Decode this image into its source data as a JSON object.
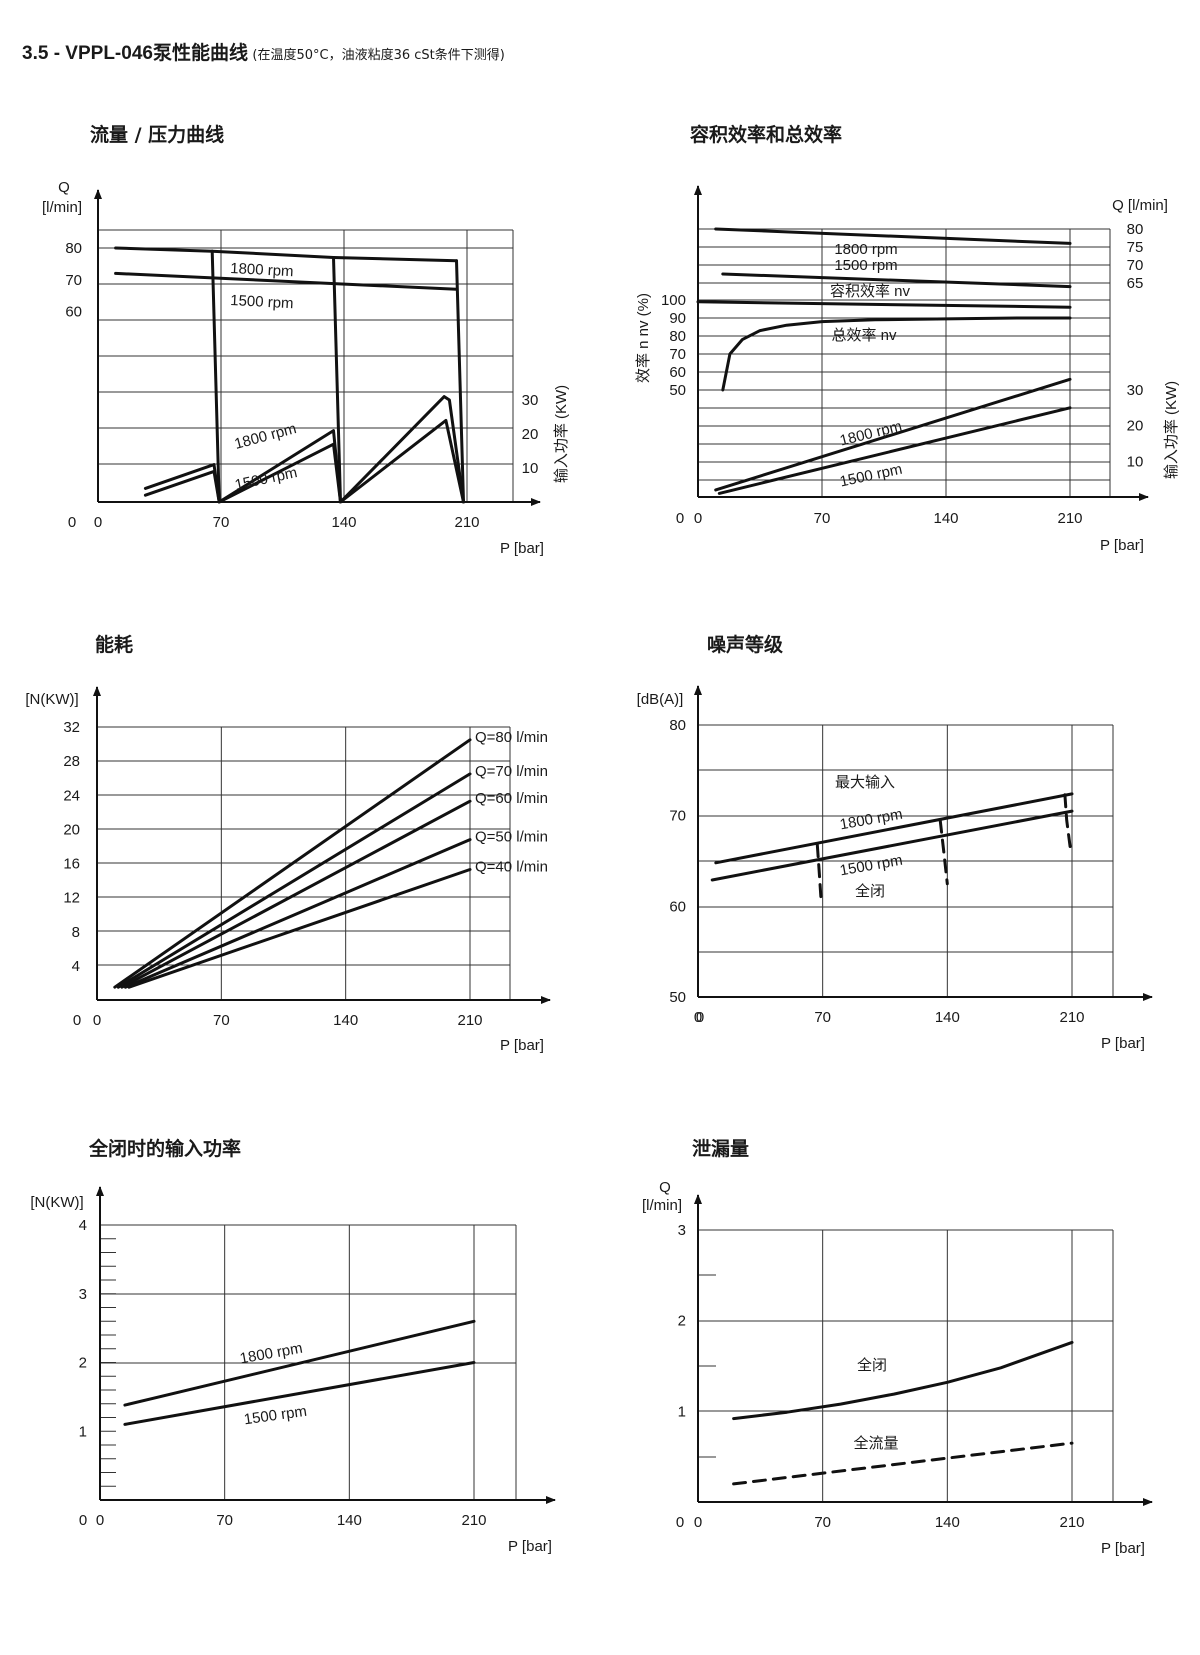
{
  "page": {
    "title_main": "3.5 - VPPL-046泵性能曲线",
    "title_sub": "(在温度50°C，油液粘度36 cSt条件下测得)"
  },
  "chart_data": [
    {
      "id": "flow_pressure",
      "type": "line",
      "title": "流量 / 压力曲线",
      "xlabel": "P [bar]",
      "ylabel_left": "Q [l/min]",
      "ylabel_right": "输入功率 (KW)",
      "x_ticks": [
        0,
        70,
        140,
        210
      ],
      "y_left_ticks": [
        60,
        70,
        80
      ],
      "y_right_ticks": [
        10,
        20,
        30
      ],
      "xlim": [
        0,
        245
      ],
      "ylim_left": [
        0,
        90
      ],
      "ylim_right": [
        0,
        60
      ],
      "grid": true,
      "series": [
        {
          "name": "1800 rpm",
          "axis": "left",
          "role": "flow",
          "x": [
            10,
            65
          ],
          "y": [
            80,
            79
          ]
        },
        {
          "name": "",
          "axis": "left",
          "role": "flow",
          "x": [
            65,
            134
          ],
          "y": [
            79,
            77
          ]
        },
        {
          "name": "",
          "axis": "left",
          "role": "flow",
          "x": [
            134,
            204
          ],
          "y": [
            77,
            76
          ]
        },
        {
          "name": "1500 rpm",
          "axis": "left",
          "role": "flow",
          "x": [
            10,
            204
          ],
          "y": [
            72,
            67
          ]
        },
        {
          "name": "",
          "axis": "left",
          "role": "drop",
          "x": [
            65,
            69
          ],
          "y": [
            79,
            0
          ]
        },
        {
          "name": "",
          "axis": "left",
          "role": "drop",
          "x": [
            134,
            138
          ],
          "y": [
            77,
            0
          ]
        },
        {
          "name": "",
          "axis": "left",
          "role": "drop",
          "x": [
            204,
            208
          ],
          "y": [
            76,
            0
          ]
        },
        {
          "name": "1800 rpm",
          "axis": "right",
          "role": "power",
          "x": [
            27,
            66,
            69,
            134,
            138,
            197,
            200,
            208
          ],
          "y": [
            4,
            11,
            0,
            21,
            0,
            31,
            30,
            0
          ]
        },
        {
          "name": "1500 rpm",
          "axis": "right",
          "role": "power",
          "x": [
            27,
            66,
            69,
            134,
            138,
            198,
            208
          ],
          "y": [
            2,
            9,
            0,
            17,
            0,
            24,
            0
          ]
        }
      ],
      "annotations": [
        "1800 rpm",
        "1500 rpm",
        "1800 rpm",
        "1500 rpm"
      ]
    },
    {
      "id": "efficiency",
      "type": "line",
      "title": "容积效率和总效率",
      "xlabel": "P [bar]",
      "ylabel_left": "效率 n nv (%)",
      "ylabel_right_top": "Q [l/min]",
      "ylabel_right_bottom": "输入功率 (KW)",
      "x_ticks": [
        0,
        70,
        140,
        210
      ],
      "y_left_ticks": [
        50,
        60,
        70,
        80,
        90,
        100
      ],
      "y_right_top_ticks": [
        65,
        70,
        75,
        80
      ],
      "y_right_bottom_ticks": [
        10,
        20,
        30
      ],
      "xlim": [
        0,
        245
      ],
      "grid": true,
      "series": [
        {
          "name": "1800 rpm",
          "role": "flow",
          "x": [
            10,
            210
          ],
          "y": [
            80,
            76
          ]
        },
        {
          "name": "1500 rpm",
          "role": "flow",
          "x": [
            14,
            210
          ],
          "y": [
            67.5,
            64
          ]
        },
        {
          "name": "容积效率 nv",
          "role": "efficiency",
          "x": [
            0,
            210
          ],
          "y": [
            99,
            96
          ]
        },
        {
          "name": "总效率 nv",
          "role": "efficiency",
          "x": [
            14,
            18,
            25,
            35,
            50,
            70,
            100,
            140,
            180,
            210
          ],
          "y": [
            50,
            70,
            78,
            83,
            86,
            88,
            89,
            89.5,
            90,
            90
          ]
        },
        {
          "name": "1800 rpm",
          "role": "power",
          "x": [
            10,
            210
          ],
          "y": [
            2,
            33
          ]
        },
        {
          "name": "1500 rpm",
          "role": "power",
          "x": [
            12,
            210
          ],
          "y": [
            1,
            25
          ]
        }
      ],
      "annotations": [
        "1800 rpm",
        "1500 rpm",
        "容积效率 nv",
        "总效率 nv",
        "1800 rpm",
        "1500 rpm"
      ]
    },
    {
      "id": "power_consumption",
      "type": "line",
      "title": "能耗",
      "xlabel": "P [bar]",
      "ylabel": "[N(KW)]",
      "x_ticks": [
        0,
        70,
        140,
        210
      ],
      "y_ticks": [
        4,
        8,
        12,
        16,
        20,
        24,
        28,
        32
      ],
      "xlim": [
        0,
        245
      ],
      "ylim": [
        0,
        34
      ],
      "grid": true,
      "series": [
        {
          "name": "Q=80 l/min",
          "x": [
            10,
            210
          ],
          "y": [
            1.5,
            30.5
          ]
        },
        {
          "name": "Q=70 l/min",
          "x": [
            12,
            210
          ],
          "y": [
            1.5,
            26.5
          ]
        },
        {
          "name": "Q=60 l/min",
          "x": [
            14,
            210
          ],
          "y": [
            1.5,
            23.3
          ]
        },
        {
          "name": "Q=50 l/min",
          "x": [
            16,
            210
          ],
          "y": [
            1.5,
            18.8
          ]
        },
        {
          "name": "Q=40 l/min",
          "x": [
            18,
            210
          ],
          "y": [
            1.5,
            15.3
          ]
        }
      ]
    },
    {
      "id": "noise",
      "type": "line",
      "title": "噪声等级",
      "xlabel": "P [bar]",
      "ylabel": "[dB(A)]",
      "x_ticks": [
        0,
        70,
        140,
        210
      ],
      "y_ticks": [
        50,
        60,
        70,
        80
      ],
      "xlim": [
        0,
        245
      ],
      "ylim": [
        50,
        80
      ],
      "grid": true,
      "series": [
        {
          "name": "1800 rpm",
          "x": [
            10,
            210
          ],
          "y": [
            64.8,
            72.4
          ]
        },
        {
          "name": "1500 rpm",
          "x": [
            8,
            210
          ],
          "y": [
            62.9,
            70.5
          ]
        },
        {
          "name": "全闭",
          "style": "dashed",
          "x": [
            67,
            68,
            69
          ],
          "y": [
            66.8,
            64,
            61
          ]
        },
        {
          "name": "全闭",
          "style": "dashed",
          "x": [
            136,
            138,
            140
          ],
          "y": [
            69.5,
            66,
            62.5
          ]
        },
        {
          "name": "全闭",
          "style": "dashed",
          "x": [
            206,
            207,
            209
          ],
          "y": [
            72.3,
            69.5,
            66.5
          ]
        }
      ],
      "annotations": [
        "最大输入",
        "1800 rpm",
        "1500 rpm",
        "全闭"
      ]
    },
    {
      "id": "deadhead_power",
      "type": "line",
      "title": "全闭时的输入功率",
      "xlabel": "P [bar]",
      "ylabel": "[N(KW)]",
      "x_ticks": [
        0,
        70,
        140,
        210
      ],
      "y_ticks": [
        1,
        2,
        3,
        4
      ],
      "xlim": [
        0,
        245
      ],
      "ylim": [
        0,
        4.2
      ],
      "grid": true,
      "series": [
        {
          "name": "1800 rpm",
          "x": [
            14,
            210
          ],
          "y": [
            1.38,
            2.6
          ]
        },
        {
          "name": "1500 rpm",
          "x": [
            14,
            210
          ],
          "y": [
            1.1,
            2.0
          ]
        }
      ]
    },
    {
      "id": "leakage",
      "type": "line",
      "title": "泄漏量",
      "xlabel": "P [bar]",
      "ylabel": "Q [l/min]",
      "x_ticks": [
        0,
        70,
        140,
        210
      ],
      "y_ticks": [
        1,
        2,
        3
      ],
      "xlim": [
        0,
        245
      ],
      "ylim": [
        0,
        3
      ],
      "grid": true,
      "series": [
        {
          "name": "全闭",
          "style": "solid",
          "x": [
            20,
            50,
            80,
            110,
            140,
            170,
            210
          ],
          "y": [
            0.92,
            0.99,
            1.08,
            1.19,
            1.32,
            1.48,
            1.76
          ]
        },
        {
          "name": "全流量",
          "style": "dashed",
          "x": [
            20,
            210
          ],
          "y": [
            0.2,
            0.65
          ]
        }
      ]
    }
  ]
}
